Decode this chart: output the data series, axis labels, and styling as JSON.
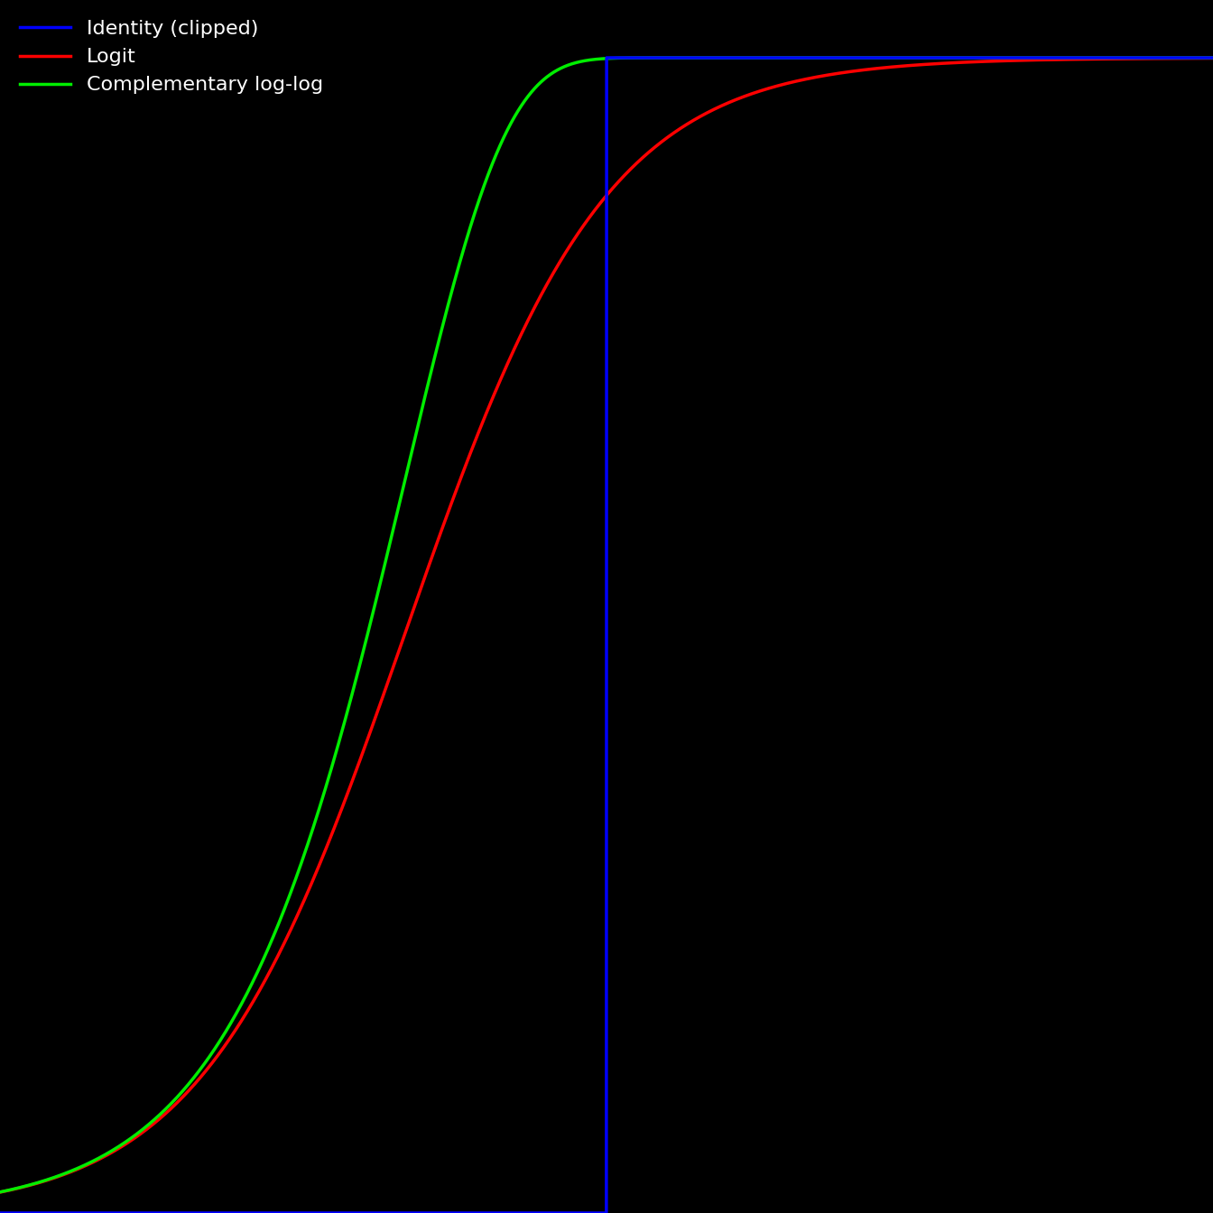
{
  "background_color": "#000000",
  "text_color": "#ffffff",
  "xlim": [
    -4,
    8
  ],
  "ylim": [
    0.0,
    1.05
  ],
  "line_colors": {
    "identity": "#0000ff",
    "logit": "#ff0000",
    "cloglog": "#00ee00"
  },
  "legend_colors": [
    "#0000ff",
    "#ff0000",
    "#00ee00"
  ],
  "legend_labels": [
    "Identity (clipped)",
    "Logit",
    "Complementary log-log"
  ],
  "step_jump": 2.0,
  "step_low": 0.0,
  "step_high": 1.0,
  "line_width": 2.5
}
